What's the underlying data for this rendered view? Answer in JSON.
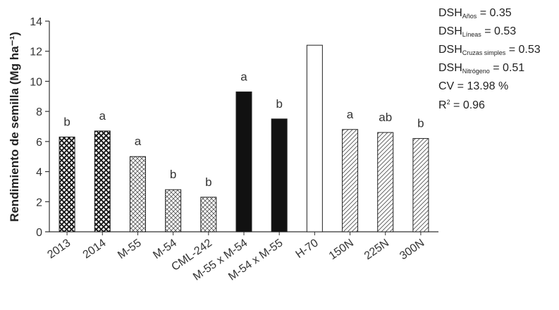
{
  "chart_data": {
    "type": "bar",
    "ylabel": "Rendimiento de semilla (Mg ha⁻¹)",
    "ylim": [
      0,
      14
    ],
    "yticks": [
      "0",
      "2",
      "4",
      "6",
      "8",
      "10",
      "12",
      "14"
    ],
    "categories": [
      "2013",
      "2014",
      "M-55",
      "M-54",
      "CML-242",
      "M-55 x M-54",
      "M-54 x M-55",
      "H-70",
      "150N",
      "225N",
      "300N"
    ],
    "values": [
      6.3,
      6.7,
      5.0,
      2.8,
      2.3,
      9.3,
      7.5,
      12.4,
      6.8,
      6.6,
      6.2
    ],
    "significance": [
      "b",
      "a",
      "a",
      "b",
      "b",
      "a",
      "b",
      "",
      "a",
      "ab",
      "b"
    ],
    "patterns": [
      "crosshatch-dense",
      "crosshatch-dense",
      "crosshatch-fine",
      "crosshatch-fine",
      "crosshatch-fine",
      "solid-black",
      "solid-black",
      "white",
      "diagonal",
      "diagonal",
      "diagonal"
    ],
    "grid": false,
    "stats": [
      {
        "base": "DSH",
        "sub": "Años",
        "rest": " = 0.35"
      },
      {
        "base": "DSH",
        "sub": "Líneas",
        "rest": " = 0.53"
      },
      {
        "base": "DSH",
        "sub": "Cruzas simples",
        "rest": " = 0.53"
      },
      {
        "base": "DSH",
        "sub": "Nitrógeno",
        "rest": " = 0.51"
      },
      {
        "base": "CV = 13.98 %",
        "sub": "",
        "rest": ""
      },
      {
        "base": "R",
        "sup": "2",
        "rest": " = 0.96"
      }
    ]
  }
}
